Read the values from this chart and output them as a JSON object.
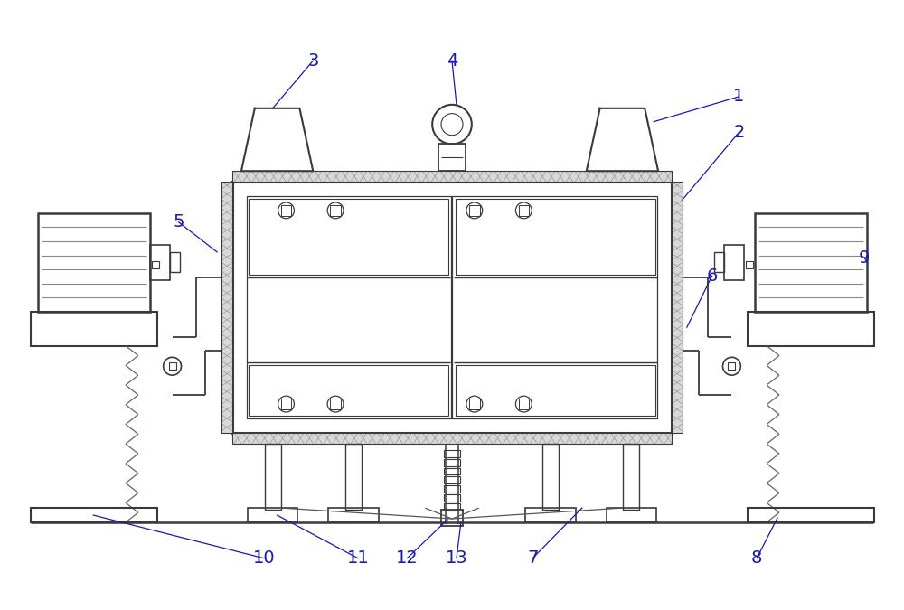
{
  "bg_color": "#ffffff",
  "line_color": "#3a3a3a",
  "lw_main": 1.8,
  "lw_thin": 0.9,
  "lw_thick": 2.2,
  "label_color": "#1a1aaa",
  "label_fontsize": 14
}
